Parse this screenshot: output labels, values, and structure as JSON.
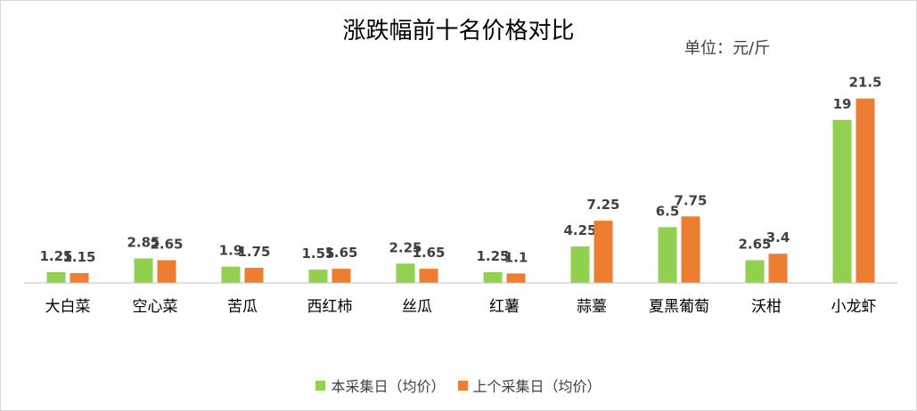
{
  "chart_data": {
    "type": "bar",
    "title": "涨跌幅前十名价格对比",
    "unit_label": "单位：元/斤",
    "categories": [
      "大白菜",
      "空心菜",
      "苦瓜",
      "西红柿",
      "丝瓜",
      "红薯",
      "蒜薹",
      "夏黑葡萄",
      "沃柑",
      "小龙虾"
    ],
    "series": [
      {
        "name": "本采集日（均价）",
        "color": "#92d050",
        "values": [
          1.25,
          2.85,
          1.9,
          1.55,
          2.25,
          1.25,
          4.25,
          6.5,
          2.65,
          19
        ],
        "labels": [
          "1.25",
          "2.85",
          "1.9",
          "1.55",
          "2.25",
          "1.25",
          "4.25",
          "6.5",
          "2.65",
          "19"
        ]
      },
      {
        "name": "上个采集日（均价）",
        "color": "#ed7d31",
        "values": [
          1.15,
          2.65,
          1.75,
          1.65,
          1.65,
          1.1,
          7.25,
          7.75,
          3.4,
          21.5
        ],
        "labels": [
          "1.15",
          "2.65",
          "1.75",
          "1.65",
          "1.65",
          "1.1",
          "7.25",
          "7.75",
          "3.4",
          "21.5"
        ]
      }
    ],
    "ylim": [
      0,
      25
    ],
    "axis_color": "#bfbfbf",
    "grid": false,
    "legend_position": "bottom"
  }
}
